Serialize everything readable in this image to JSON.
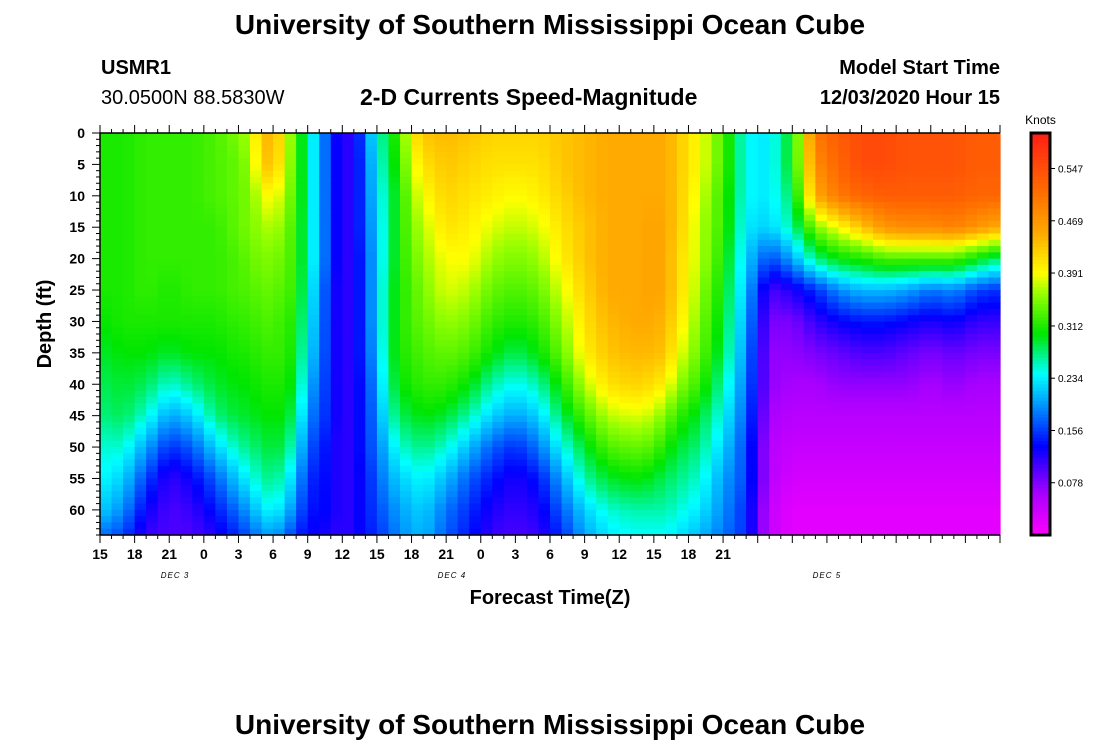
{
  "header": {
    "title": "University of Southern Mississippi Ocean Cube",
    "station_id": "USMR1",
    "station_coords": "30.0500N 88.5830W",
    "subtitle": "2-D Currents Speed-Magnitude",
    "model_label": "Model Start Time",
    "model_time": "12/03/2020 Hour 15"
  },
  "footer": {
    "title": "University of Southern Mississippi Ocean Cube"
  },
  "chart_data": {
    "type": "heatmap",
    "title": "2-D Currents Speed-Magnitude",
    "xlabel": "Forecast Time(Z)",
    "ylabel": "Depth (ft)",
    "x_hours": [
      0,
      78
    ],
    "y_range": [
      0,
      64
    ],
    "y_ticks": [
      0,
      5,
      10,
      15,
      20,
      25,
      30,
      35,
      40,
      45,
      50,
      55,
      60
    ],
    "x_ticks": [
      "15",
      "18",
      "21",
      "0",
      "3",
      "6",
      "9",
      "12",
      "15",
      "18",
      "21",
      "0",
      "3",
      "6",
      "9",
      "12",
      "15",
      "18",
      "21"
    ],
    "date_labels": [
      {
        "label": "DEC 3",
        "hour": 6.5
      },
      {
        "label": "DEC 4",
        "hour": 30.5
      },
      {
        "label": "DEC 5",
        "hour": 63
      }
    ],
    "colorbar": {
      "unit": "Knots",
      "ticks": [
        0.078,
        0.156,
        0.234,
        0.312,
        0.391,
        0.469,
        0.547
      ],
      "vmin": 0.0,
      "vmax": 0.6,
      "tick_labels": [
        "0.078",
        "0.156",
        "0.234",
        "0.312",
        "0.391",
        "0.469",
        "0.547"
      ]
    },
    "time_columns_hours": [
      0,
      2,
      4,
      6,
      8,
      10,
      12,
      13,
      14,
      15,
      16,
      17,
      18,
      20,
      21,
      22,
      23,
      24,
      25,
      26,
      27,
      28,
      30,
      32,
      34,
      36,
      38,
      40,
      42,
      44,
      46,
      47,
      48,
      49,
      50,
      52,
      54,
      56,
      58,
      60,
      62,
      64,
      66,
      68,
      70,
      72,
      74,
      76,
      78
    ],
    "depth_rows_ft": [
      0,
      5,
      10,
      15,
      20,
      25,
      30,
      35,
      40,
      45,
      50,
      55,
      60,
      64
    ],
    "values": [
      [
        0.31,
        0.31,
        0.31,
        0.31,
        0.31,
        0.31,
        0.3,
        0.29,
        0.28,
        0.27,
        0.25,
        0.24,
        0.22,
        0.18
      ],
      [
        0.31,
        0.31,
        0.31,
        0.31,
        0.31,
        0.31,
        0.31,
        0.3,
        0.29,
        0.28,
        0.25,
        0.22,
        0.19,
        0.16
      ],
      [
        0.32,
        0.32,
        0.32,
        0.32,
        0.32,
        0.32,
        0.31,
        0.3,
        0.28,
        0.25,
        0.2,
        0.16,
        0.13,
        0.11
      ],
      [
        0.32,
        0.32,
        0.32,
        0.32,
        0.32,
        0.31,
        0.31,
        0.29,
        0.25,
        0.2,
        0.15,
        0.11,
        0.1,
        0.1
      ],
      [
        0.32,
        0.32,
        0.32,
        0.32,
        0.32,
        0.32,
        0.31,
        0.3,
        0.27,
        0.22,
        0.17,
        0.13,
        0.11,
        0.1
      ],
      [
        0.33,
        0.33,
        0.33,
        0.32,
        0.32,
        0.32,
        0.31,
        0.3,
        0.29,
        0.27,
        0.22,
        0.17,
        0.14,
        0.12
      ],
      [
        0.35,
        0.34,
        0.34,
        0.34,
        0.33,
        0.33,
        0.32,
        0.31,
        0.3,
        0.29,
        0.26,
        0.22,
        0.18,
        0.15
      ],
      [
        0.37,
        0.36,
        0.35,
        0.35,
        0.34,
        0.33,
        0.32,
        0.31,
        0.3,
        0.29,
        0.27,
        0.24,
        0.2,
        0.17
      ],
      [
        0.43,
        0.42,
        0.38,
        0.36,
        0.35,
        0.34,
        0.33,
        0.32,
        0.31,
        0.3,
        0.28,
        0.26,
        0.23,
        0.19
      ],
      [
        0.45,
        0.44,
        0.4,
        0.37,
        0.35,
        0.34,
        0.33,
        0.32,
        0.31,
        0.3,
        0.29,
        0.27,
        0.24,
        0.2
      ],
      [
        0.39,
        0.38,
        0.36,
        0.35,
        0.34,
        0.33,
        0.32,
        0.32,
        0.31,
        0.3,
        0.28,
        0.25,
        0.22,
        0.18
      ],
      [
        0.33,
        0.33,
        0.33,
        0.32,
        0.32,
        0.32,
        0.31,
        0.3,
        0.29,
        0.27,
        0.24,
        0.21,
        0.18,
        0.15
      ],
      [
        0.26,
        0.26,
        0.26,
        0.26,
        0.26,
        0.25,
        0.24,
        0.23,
        0.21,
        0.19,
        0.17,
        0.15,
        0.14,
        0.13
      ],
      [
        0.15,
        0.15,
        0.15,
        0.15,
        0.15,
        0.14,
        0.14,
        0.14,
        0.14,
        0.14,
        0.13,
        0.13,
        0.13,
        0.12
      ],
      [
        0.11,
        0.11,
        0.11,
        0.11,
        0.11,
        0.11,
        0.11,
        0.11,
        0.11,
        0.11,
        0.11,
        0.11,
        0.11,
        0.11
      ],
      [
        0.12,
        0.12,
        0.12,
        0.12,
        0.12,
        0.12,
        0.12,
        0.12,
        0.12,
        0.12,
        0.12,
        0.12,
        0.12,
        0.12
      ],
      [
        0.18,
        0.17,
        0.17,
        0.17,
        0.16,
        0.16,
        0.16,
        0.16,
        0.15,
        0.15,
        0.15,
        0.14,
        0.14,
        0.14
      ],
      [
        0.25,
        0.24,
        0.23,
        0.22,
        0.22,
        0.22,
        0.22,
        0.21,
        0.2,
        0.19,
        0.18,
        0.17,
        0.16,
        0.15
      ],
      [
        0.29,
        0.28,
        0.27,
        0.27,
        0.27,
        0.28,
        0.28,
        0.28,
        0.27,
        0.25,
        0.22,
        0.2,
        0.18,
        0.17
      ],
      [
        0.33,
        0.32,
        0.31,
        0.31,
        0.31,
        0.31,
        0.31,
        0.31,
        0.3,
        0.28,
        0.25,
        0.22,
        0.2,
        0.19
      ],
      [
        0.4,
        0.38,
        0.36,
        0.35,
        0.34,
        0.33,
        0.33,
        0.32,
        0.31,
        0.29,
        0.26,
        0.23,
        0.21,
        0.2
      ],
      [
        0.43,
        0.41,
        0.39,
        0.37,
        0.36,
        0.35,
        0.34,
        0.33,
        0.32,
        0.3,
        0.27,
        0.24,
        0.22,
        0.21
      ],
      [
        0.44,
        0.43,
        0.42,
        0.41,
        0.39,
        0.38,
        0.36,
        0.34,
        0.32,
        0.29,
        0.25,
        0.21,
        0.18,
        0.17
      ],
      [
        0.43,
        0.42,
        0.41,
        0.4,
        0.39,
        0.37,
        0.35,
        0.33,
        0.3,
        0.26,
        0.21,
        0.17,
        0.15,
        0.14
      ],
      [
        0.42,
        0.41,
        0.4,
        0.38,
        0.36,
        0.34,
        0.32,
        0.3,
        0.26,
        0.22,
        0.17,
        0.14,
        0.12,
        0.11
      ],
      [
        0.42,
        0.41,
        0.39,
        0.37,
        0.35,
        0.33,
        0.31,
        0.28,
        0.24,
        0.2,
        0.15,
        0.12,
        0.11,
        0.1
      ],
      [
        0.42,
        0.41,
        0.4,
        0.38,
        0.36,
        0.34,
        0.32,
        0.3,
        0.26,
        0.22,
        0.18,
        0.14,
        0.12,
        0.11
      ],
      [
        0.43,
        0.43,
        0.42,
        0.41,
        0.4,
        0.38,
        0.36,
        0.34,
        0.31,
        0.28,
        0.24,
        0.2,
        0.17,
        0.15
      ],
      [
        0.44,
        0.44,
        0.44,
        0.43,
        0.43,
        0.42,
        0.41,
        0.4,
        0.37,
        0.33,
        0.29,
        0.26,
        0.22,
        0.2
      ],
      [
        0.45,
        0.45,
        0.45,
        0.45,
        0.45,
        0.45,
        0.44,
        0.43,
        0.41,
        0.37,
        0.33,
        0.29,
        0.25,
        0.23
      ],
      [
        0.45,
        0.45,
        0.45,
        0.45,
        0.45,
        0.45,
        0.45,
        0.44,
        0.42,
        0.38,
        0.34,
        0.3,
        0.26,
        0.24
      ],
      [
        0.45,
        0.45,
        0.45,
        0.45,
        0.45,
        0.45,
        0.45,
        0.44,
        0.42,
        0.38,
        0.34,
        0.3,
        0.26,
        0.24
      ],
      [
        0.45,
        0.45,
        0.45,
        0.46,
        0.46,
        0.46,
        0.45,
        0.44,
        0.41,
        0.37,
        0.33,
        0.29,
        0.26,
        0.24
      ],
      [
        0.45,
        0.45,
        0.45,
        0.45,
        0.45,
        0.45,
        0.44,
        0.43,
        0.4,
        0.35,
        0.31,
        0.28,
        0.26,
        0.24
      ],
      [
        0.43,
        0.43,
        0.43,
        0.43,
        0.42,
        0.42,
        0.41,
        0.39,
        0.36,
        0.32,
        0.29,
        0.27,
        0.25,
        0.23
      ],
      [
        0.39,
        0.39,
        0.38,
        0.37,
        0.37,
        0.36,
        0.35,
        0.34,
        0.32,
        0.29,
        0.27,
        0.25,
        0.23,
        0.21
      ],
      [
        0.33,
        0.33,
        0.32,
        0.32,
        0.31,
        0.3,
        0.29,
        0.28,
        0.26,
        0.24,
        0.22,
        0.2,
        0.19,
        0.18
      ],
      [
        0.24,
        0.24,
        0.24,
        0.23,
        0.22,
        0.21,
        0.2,
        0.19,
        0.18,
        0.17,
        0.16,
        0.16,
        0.15,
        0.15
      ],
      [
        0.23,
        0.23,
        0.23,
        0.22,
        0.16,
        0.1,
        0.08,
        0.07,
        0.07,
        0.06,
        0.05,
        0.05,
        0.04,
        0.04
      ],
      [
        0.3,
        0.3,
        0.28,
        0.26,
        0.2,
        0.12,
        0.08,
        0.07,
        0.06,
        0.05,
        0.04,
        0.03,
        0.02,
        0.02
      ],
      [
        0.5,
        0.48,
        0.45,
        0.35,
        0.27,
        0.15,
        0.11,
        0.08,
        0.06,
        0.05,
        0.04,
        0.03,
        0.02,
        0.02
      ],
      [
        0.53,
        0.52,
        0.5,
        0.39,
        0.3,
        0.19,
        0.13,
        0.09,
        0.07,
        0.05,
        0.04,
        0.03,
        0.02,
        0.02
      ],
      [
        0.55,
        0.55,
        0.52,
        0.43,
        0.31,
        0.21,
        0.14,
        0.1,
        0.07,
        0.05,
        0.04,
        0.03,
        0.02,
        0.02
      ],
      [
        0.55,
        0.55,
        0.53,
        0.47,
        0.33,
        0.21,
        0.14,
        0.1,
        0.07,
        0.05,
        0.04,
        0.03,
        0.02,
        0.02
      ],
      [
        0.54,
        0.54,
        0.53,
        0.48,
        0.33,
        0.2,
        0.13,
        0.09,
        0.07,
        0.05,
        0.04,
        0.03,
        0.02,
        0.02
      ],
      [
        0.54,
        0.54,
        0.53,
        0.48,
        0.33,
        0.18,
        0.12,
        0.08,
        0.06,
        0.05,
        0.04,
        0.03,
        0.02,
        0.02
      ],
      [
        0.54,
        0.54,
        0.53,
        0.49,
        0.33,
        0.19,
        0.13,
        0.09,
        0.07,
        0.05,
        0.04,
        0.03,
        0.02,
        0.02
      ],
      [
        0.53,
        0.53,
        0.52,
        0.47,
        0.3,
        0.16,
        0.11,
        0.08,
        0.06,
        0.05,
        0.04,
        0.03,
        0.02,
        0.02
      ],
      [
        0.53,
        0.53,
        0.52,
        0.45,
        0.27,
        0.15,
        0.11,
        0.08,
        0.06,
        0.05,
        0.04,
        0.03,
        0.02,
        0.02
      ]
    ]
  }
}
